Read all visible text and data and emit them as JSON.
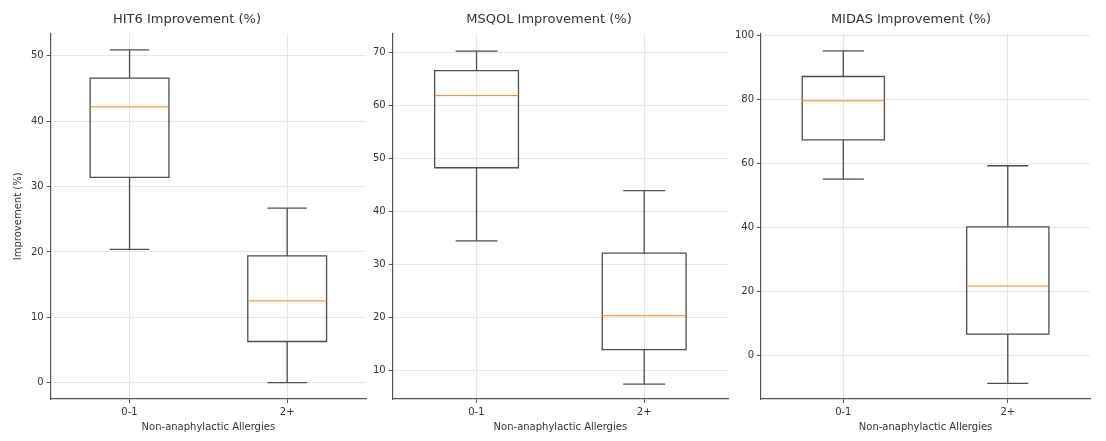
{
  "chart_data": [
    {
      "type": "box",
      "title": "HIT6 Improvement (%)",
      "xlabel": "Non-anaphylactic Allergies",
      "ylabel": "Improvement (%)",
      "categories": [
        "0-1",
        "2+"
      ],
      "series": [
        {
          "color": "#4d4d4d",
          "boxes": [
            {
              "low": 20.4,
              "q1": 31.4,
              "median": 42.2,
              "q3": 46.6,
              "high": 50.9
            },
            {
              "low": 0,
              "q1": 6.3,
              "median": 12.5,
              "q3": 19.4,
              "high": 26.7
            }
          ]
        }
      ],
      "ylim": [
        -2.5,
        53.4
      ],
      "yticks": [
        0,
        10,
        20,
        30,
        40,
        50
      ],
      "grid": true
    },
    {
      "type": "box",
      "title": "MSQOL Improvement (%)",
      "xlabel": "Non-anaphylactic Allergies",
      "categories": [
        "0-1",
        "2+"
      ],
      "series": [
        {
          "color": "#4d4d4d",
          "boxes": [
            {
              "low": 34.4,
              "q1": 48.2,
              "median": 61.8,
              "q3": 66.5,
              "high": 70.2
            },
            {
              "low": 7.4,
              "q1": 13.9,
              "median": 20.3,
              "q3": 32.1,
              "high": 43.9
            }
          ]
        }
      ],
      "ylim": [
        4.6,
        73.5
      ],
      "yticks": [
        10,
        20,
        30,
        40,
        50,
        60,
        70
      ],
      "grid": true
    },
    {
      "type": "box",
      "title": "MIDAS Improvement (%)",
      "xlabel": "Non-anaphylactic Allergies",
      "categories": [
        "0-1",
        "2+"
      ],
      "series": [
        {
          "color": "#4d4d4d",
          "boxes": [
            {
              "low": 55.0,
              "q1": 67.3,
              "median": 79.5,
              "q3": 87.1,
              "high": 95.1
            },
            {
              "low": -8.8,
              "q1": 6.6,
              "median": 21.6,
              "q3": 40.1,
              "high": 59.2
            }
          ]
        }
      ],
      "ylim": [
        -13.7,
        100.5
      ],
      "yticks": [
        0,
        20,
        40,
        60,
        80,
        100
      ],
      "grid": true
    }
  ]
}
